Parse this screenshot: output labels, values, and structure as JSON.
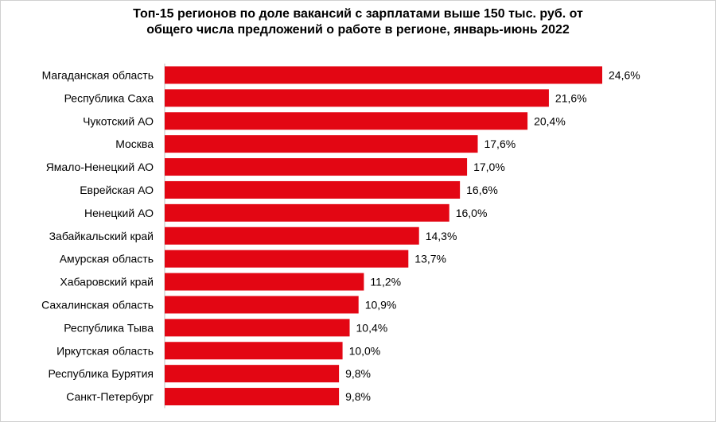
{
  "chart_data": {
    "type": "bar",
    "orientation": "horizontal",
    "title_line1": "Топ-15 регионов по доле вакансий с зарплатами выше 150 тыс. руб. от",
    "title_line2": "общего числа предложений о работе в регионе, январь-июнь 2022",
    "categories": [
      "Магаданская область",
      "Республика Саха",
      "Чукотский АО",
      "Москва",
      "Ямало-Ненецкий АО",
      "Еврейская АО",
      "Ненецкий АО",
      "Забайкальский край",
      "Амурская область",
      "Хабаровский край",
      "Сахалинская область",
      "Республика Тыва",
      "Иркутская область",
      "Республика Бурятия",
      "Санкт-Петербург"
    ],
    "values": [
      24.6,
      21.6,
      20.4,
      17.6,
      17.0,
      16.6,
      16.0,
      14.3,
      13.7,
      11.2,
      10.9,
      10.4,
      10.0,
      9.8,
      9.8
    ],
    "value_labels": [
      "24,6%",
      "21,6%",
      "20,4%",
      "17,6%",
      "17,0%",
      "16,6%",
      "16,0%",
      "14,3%",
      "13,7%",
      "11,2%",
      "10,9%",
      "10,4%",
      "10,0%",
      "9,8%",
      "9,8%"
    ],
    "unit": "%",
    "xlim": [
      0,
      24.6
    ],
    "grid": false,
    "legend": "none",
    "bar_color": "#e30613"
  }
}
